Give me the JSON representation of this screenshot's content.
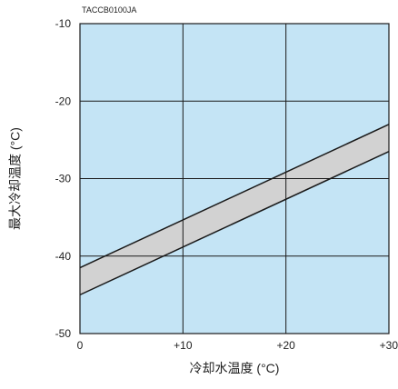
{
  "chart_data": {
    "type": "area",
    "code_label": "TACCB0100JA",
    "xlabel": "冷却水温度 (°C)",
    "ylabel": "最大冷却温度 (°C)",
    "xlim": [
      0,
      30
    ],
    "ylim": [
      -50,
      -10
    ],
    "x_ticks": [
      {
        "value": 0,
        "label": "0"
      },
      {
        "value": 10,
        "label": "+10"
      },
      {
        "value": 20,
        "label": "+20"
      },
      {
        "value": 30,
        "label": "+30"
      }
    ],
    "y_ticks": [
      {
        "value": -10,
        "label": "-10"
      },
      {
        "value": -20,
        "label": "-20"
      },
      {
        "value": -30,
        "label": "-30"
      },
      {
        "value": -40,
        "label": "-40"
      },
      {
        "value": -50,
        "label": "-50"
      }
    ],
    "grid": true,
    "series": [
      {
        "x": [
          0,
          30
        ],
        "values": [
          -41.5,
          -23
        ]
      },
      {
        "x": [
          0,
          30
        ],
        "values": [
          -45,
          -26.5
        ]
      }
    ],
    "colors": {
      "plot_background": "#c4e4f5",
      "band_fill": "#d2d2d2",
      "line": "#1a1a1a",
      "grid": "#1a1a1a",
      "text": "#222222"
    }
  }
}
